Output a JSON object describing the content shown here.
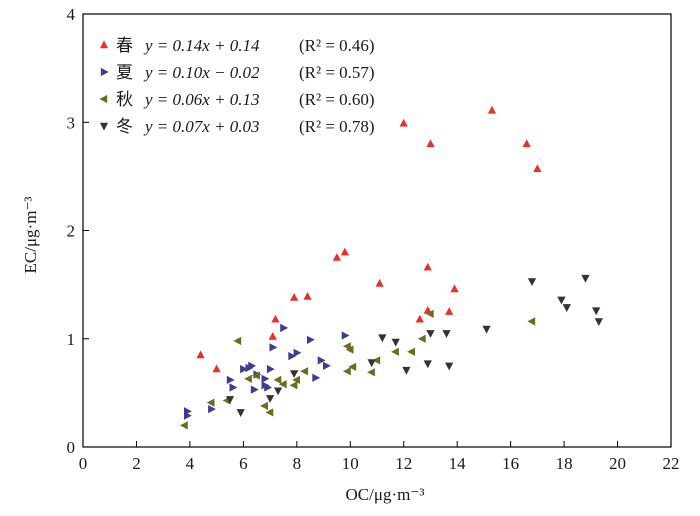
{
  "chart_data": {
    "type": "scatter",
    "xlabel": "OC/μg·m⁻³",
    "ylabel": "EC/μg·m⁻³",
    "xlim": [
      0,
      22
    ],
    "ylim": [
      0,
      4
    ],
    "xticks": [
      "0",
      "2",
      "4",
      "6",
      "8",
      "10",
      "12",
      "14",
      "16",
      "18",
      "20",
      "22"
    ],
    "yticks": [
      "0",
      "1",
      "2",
      "3",
      "4"
    ],
    "grid": false,
    "legend_position": "top-left",
    "series": [
      {
        "name": "春",
        "equation": "y = 0.14x + 0.14",
        "r2": "(R² = 0.46)",
        "marker": "triangle-up",
        "color": "#e8312f",
        "points": [
          [
            4.4,
            0.85
          ],
          [
            5.0,
            0.72
          ],
          [
            7.2,
            1.18
          ],
          [
            7.1,
            1.02
          ],
          [
            7.9,
            1.38
          ],
          [
            8.4,
            1.39
          ],
          [
            9.5,
            1.75
          ],
          [
            9.8,
            1.8
          ],
          [
            11.1,
            1.51
          ],
          [
            12.0,
            2.99
          ],
          [
            13.0,
            2.8
          ],
          [
            12.9,
            1.66
          ],
          [
            12.6,
            1.18
          ],
          [
            12.9,
            1.26
          ],
          [
            13.7,
            1.25
          ],
          [
            13.9,
            1.46
          ],
          [
            15.3,
            3.11
          ],
          [
            16.6,
            2.8
          ],
          [
            17.0,
            2.57
          ]
        ]
      },
      {
        "name": "夏",
        "equation": "y = 0.10x − 0.02",
        "r2": "(R² = 0.57)",
        "marker": "triangle-right",
        "color": "#3d3d8f",
        "points": [
          [
            3.9,
            0.33
          ],
          [
            3.9,
            0.29
          ],
          [
            4.8,
            0.35
          ],
          [
            5.5,
            0.62
          ],
          [
            5.6,
            0.55
          ],
          [
            6.0,
            0.72
          ],
          [
            6.3,
            0.75
          ],
          [
            6.2,
            0.73
          ],
          [
            6.5,
            0.67
          ],
          [
            6.8,
            0.63
          ],
          [
            6.9,
            0.55
          ],
          [
            7.0,
            0.72
          ],
          [
            7.1,
            0.92
          ],
          [
            7.5,
            1.1
          ],
          [
            7.8,
            0.84
          ],
          [
            8.0,
            0.87
          ],
          [
            8.5,
            0.99
          ],
          [
            8.7,
            0.64
          ],
          [
            8.9,
            0.8
          ],
          [
            9.1,
            0.75
          ],
          [
            9.8,
            1.03
          ],
          [
            6.4,
            0.53
          ],
          [
            6.8,
            0.57
          ]
        ]
      },
      {
        "name": "秋",
        "equation": "y = 0.06x + 0.13",
        "r2": "(R² = 0.60)",
        "marker": "triangle-left",
        "color": "#6e6a20",
        "points": [
          [
            3.8,
            0.2
          ],
          [
            4.8,
            0.41
          ],
          [
            5.4,
            0.43
          ],
          [
            5.8,
            0.98
          ],
          [
            6.2,
            0.63
          ],
          [
            6.5,
            0.66
          ],
          [
            6.8,
            0.38
          ],
          [
            7.0,
            0.32
          ],
          [
            7.3,
            0.62
          ],
          [
            7.5,
            0.58
          ],
          [
            7.9,
            0.57
          ],
          [
            8.0,
            0.62
          ],
          [
            8.3,
            0.7
          ],
          [
            9.9,
            0.93
          ],
          [
            10.0,
            0.9
          ],
          [
            9.9,
            0.7
          ],
          [
            10.1,
            0.74
          ],
          [
            10.8,
            0.69
          ],
          [
            11.0,
            0.8
          ],
          [
            11.7,
            0.88
          ],
          [
            12.3,
            0.88
          ],
          [
            12.7,
            1.0
          ],
          [
            13.0,
            1.23
          ],
          [
            16.8,
            1.16
          ]
        ]
      },
      {
        "name": "冬",
        "equation": "y = 0.07x + 0.03",
        "r2": "(R² = 0.78)",
        "marker": "triangle-down",
        "color": "#333333",
        "points": [
          [
            5.5,
            0.44
          ],
          [
            5.9,
            0.32
          ],
          [
            7.0,
            0.45
          ],
          [
            7.3,
            0.52
          ],
          [
            7.9,
            0.68
          ],
          [
            10.8,
            0.78
          ],
          [
            11.2,
            1.01
          ],
          [
            11.7,
            0.97
          ],
          [
            12.1,
            0.71
          ],
          [
            12.9,
            0.77
          ],
          [
            13.0,
            1.05
          ],
          [
            13.6,
            1.05
          ],
          [
            13.7,
            0.75
          ],
          [
            15.1,
            1.09
          ],
          [
            16.8,
            1.53
          ],
          [
            17.9,
            1.36
          ],
          [
            18.1,
            1.29
          ],
          [
            18.8,
            1.56
          ],
          [
            19.2,
            1.26
          ],
          [
            19.3,
            1.16
          ]
        ]
      }
    ]
  }
}
